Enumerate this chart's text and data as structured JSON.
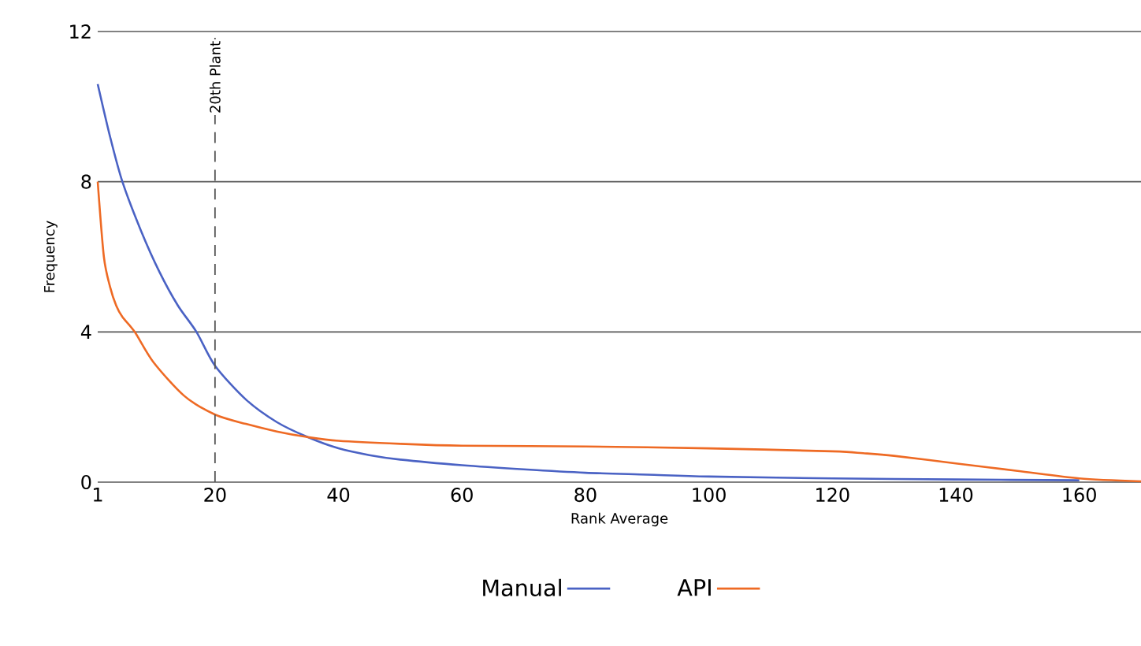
{
  "chart_data": {
    "type": "line",
    "xlabel": "Rank Average",
    "ylabel": "Frequency",
    "xlim": [
      1,
      170
    ],
    "ylim": [
      0,
      12
    ],
    "xticks": [
      1,
      20,
      40,
      60,
      80,
      100,
      120,
      140,
      160
    ],
    "yticks": [
      0,
      4,
      8,
      12
    ],
    "grid": "y",
    "legend": "bottom",
    "marker": "none",
    "line_style": "solid",
    "series": [
      {
        "name": "Manual",
        "color": "#4a62c4",
        "x": [
          1,
          3,
          5,
          8,
          11,
          14,
          17,
          20,
          25,
          30,
          35,
          40,
          45,
          50,
          60,
          70,
          80,
          90,
          100,
          120,
          140,
          160
        ],
        "values": [
          10.6,
          9.2,
          8,
          6.7,
          5.6,
          4.7,
          4.0,
          3.1,
          2.2,
          1.6,
          1.2,
          0.9,
          0.72,
          0.6,
          0.45,
          0.34,
          0.25,
          0.2,
          0.15,
          0.1,
          0.07,
          0.05
        ]
      },
      {
        "name": "API",
        "color": "#ee6a24",
        "x": [
          1,
          2,
          3,
          4,
          5,
          7,
          10,
          15,
          20,
          25,
          30,
          35,
          40,
          50,
          60,
          80,
          100,
          120,
          125,
          130,
          140,
          150,
          160,
          170
        ],
        "values": [
          8,
          6,
          5.2,
          4.7,
          4.4,
          4.0,
          3.2,
          2.3,
          1.8,
          1.55,
          1.35,
          1.2,
          1.1,
          1.02,
          0.97,
          0.95,
          0.9,
          0.82,
          0.77,
          0.7,
          0.5,
          0.3,
          0.1,
          0.02
        ]
      }
    ],
    "ref_lines": [
      {
        "axis": "x",
        "value": 20,
        "label": "20th Plant",
        "color": "#555555",
        "line_style": "dashed"
      }
    ]
  }
}
